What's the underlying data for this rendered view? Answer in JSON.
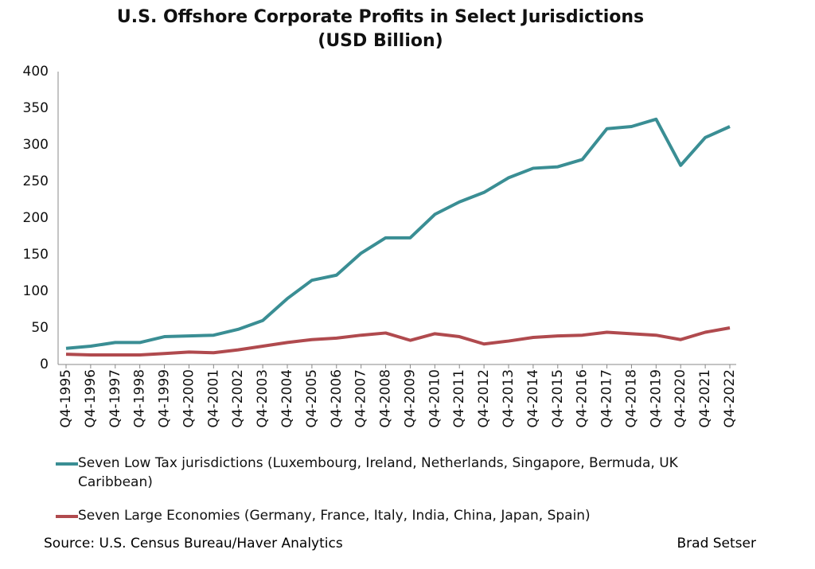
{
  "chart_data": {
    "type": "line",
    "title": "U.S. Offshore Corporate Profits in Select Jurisdictions",
    "subtitle": "(USD Billion)",
    "categories": [
      "Q4-1995",
      "Q4-1996",
      "Q4-1997",
      "Q4-1998",
      "Q4-1999",
      "Q4-2000",
      "Q4-2001",
      "Q4-2002",
      "Q4-2003",
      "Q4-2004",
      "Q4-2005",
      "Q4-2006",
      "Q4-2007",
      "Q4-2008",
      "Q4-2009",
      "Q4-2010",
      "Q4-2011",
      "Q4-2012",
      "Q4-2013",
      "Q4-2014",
      "Q4-2015",
      "Q4-2016",
      "Q4-2017",
      "Q4-2018",
      "Q4-2019",
      "Q4-2020",
      "Q4-2021",
      "Q4-2022"
    ],
    "series": [
      {
        "name": "Seven Low Tax jurisdictions (Luxembourg, Ireland, Netherlands, Singapore, Bermuda, UK Caribbean)",
        "color": "#3a8e94",
        "values": [
          22,
          25,
          30,
          30,
          38,
          39,
          40,
          48,
          60,
          90,
          115,
          122,
          152,
          173,
          173,
          205,
          222,
          235,
          255,
          268,
          270,
          280,
          322,
          325,
          335,
          272,
          310,
          325
        ]
      },
      {
        "name": "Seven Large Economies (Germany, France, Italy, India, China, Japan, Spain)",
        "color": "#b04a4e",
        "values": [
          14,
          13,
          13,
          13,
          15,
          17,
          16,
          20,
          25,
          30,
          34,
          36,
          40,
          43,
          33,
          42,
          38,
          28,
          32,
          37,
          39,
          40,
          44,
          42,
          40,
          34,
          44,
          50
        ]
      }
    ],
    "ylim": [
      0,
      400
    ],
    "yticks": [
      0,
      50,
      100,
      150,
      200,
      250,
      300,
      350,
      400
    ],
    "grid": false,
    "source": "Source: U.S. Census Bureau/Haver Analytics",
    "author": "Brad Setser"
  }
}
